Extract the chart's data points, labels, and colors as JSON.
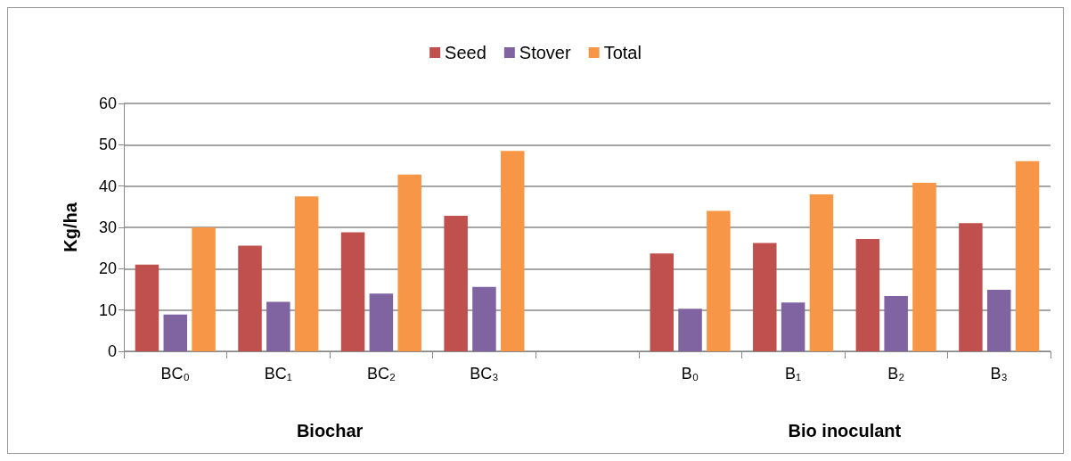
{
  "chart_data": {
    "type": "bar",
    "ylabel": "Kg/ha",
    "categories": [
      "BC₀",
      "BC₁",
      "BC₂",
      "BC₃",
      null,
      "B₀",
      "B₁",
      "B₂",
      "B₃"
    ],
    "series": [
      {
        "name": "Seed",
        "color": "#c0504d",
        "values": [
          21,
          25.6,
          28.8,
          32.8,
          null,
          23.7,
          26.2,
          27.2,
          31
        ]
      },
      {
        "name": "Stover",
        "color": "#8064a2",
        "values": [
          8.9,
          12,
          14,
          15.6,
          null,
          10.3,
          11.8,
          13.4,
          14.9
        ]
      },
      {
        "name": "Total",
        "color": "#f79646",
        "values": [
          30,
          37.5,
          42.8,
          48.5,
          null,
          34,
          38,
          40.8,
          46
        ]
      }
    ],
    "annotations": [
      "Biochar",
      "Bio inoculant"
    ],
    "ylim": [
      0,
      60
    ],
    "yticks": [
      0,
      10,
      20,
      30,
      40,
      50,
      60
    ],
    "grid": "y",
    "legend": "top"
  }
}
